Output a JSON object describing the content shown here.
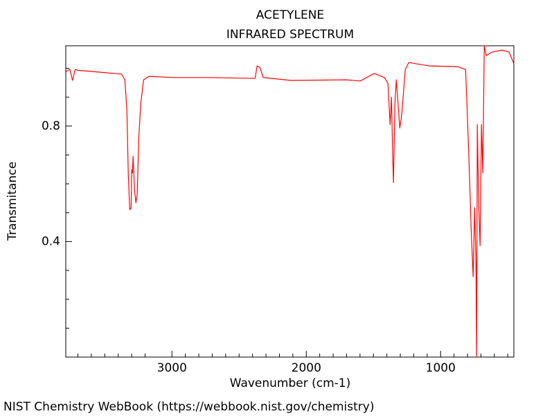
{
  "chart_data": {
    "type": "line",
    "title": "ACETYLENE",
    "subtitle": "INFRARED SPECTRUM",
    "x_label": "Wavenumber (cm-1)",
    "y_label": "Transmitance",
    "footer": "NIST Chemistry WebBook (https://webbook.nist.gov/chemistry)",
    "color": "#ff0000",
    "x": [
      3789,
      3760,
      3740,
      3720,
      3700,
      3376,
      3350,
      3335,
      3325,
      3314,
      3304,
      3299,
      3294,
      3289,
      3278,
      3268,
      3258,
      3247,
      3232,
      3211,
      3170,
      2990,
      2732,
      2381,
      2366,
      2345,
      2320,
      2113,
      1701,
      1598,
      1495,
      1418,
      1392,
      1376,
      1366,
      1356,
      1351,
      1340,
      1330,
      1320,
      1304,
      1289,
      1263,
      1237,
      1082,
      876,
      814,
      804,
      789,
      773,
      758,
      747,
      737,
      732,
      727,
      716,
      706,
      696,
      686,
      675,
      660,
      619,
      541,
      490,
      455
    ],
    "values": [
      0.989,
      0.996,
      0.958,
      0.996,
      0.993,
      0.98,
      0.96,
      0.853,
      0.637,
      0.51,
      0.517,
      0.649,
      0.637,
      0.695,
      0.577,
      0.534,
      0.565,
      0.757,
      0.877,
      0.96,
      0.972,
      0.968,
      0.968,
      0.965,
      1.008,
      1.003,
      0.968,
      0.958,
      0.96,
      0.956,
      0.982,
      0.968,
      0.948,
      0.805,
      0.9,
      0.685,
      0.604,
      0.877,
      0.96,
      0.9,
      0.793,
      0.84,
      0.996,
      1.02,
      1.008,
      1.006,
      0.996,
      0.877,
      0.685,
      0.446,
      0.278,
      0.517,
      0.326,
      0.0,
      0.805,
      0.517,
      0.386,
      0.805,
      0.637,
      1.078,
      1.044,
      1.056,
      1.063,
      1.056,
      1.016
    ],
    "xlim": [
      3790,
      455
    ],
    "ylim": [
      0,
      1.078
    ],
    "xticks": [
      3000,
      2000,
      1000
    ],
    "yticks": [
      0.4,
      0.8
    ],
    "xminorticks": [
      3700,
      3600,
      3500,
      3400,
      3300,
      3200,
      2900,
      2800,
      2700,
      2600,
      2500,
      2400,
      2300,
      2200,
      2100,
      1900,
      1800,
      1700,
      1600,
      1500,
      1400,
      1300,
      1200,
      1100,
      900,
      800,
      700,
      600,
      500
    ],
    "yminorticks": [
      0.1,
      0.2,
      0.3,
      0.5,
      0.6,
      0.7,
      0.9,
      1.0
    ]
  }
}
